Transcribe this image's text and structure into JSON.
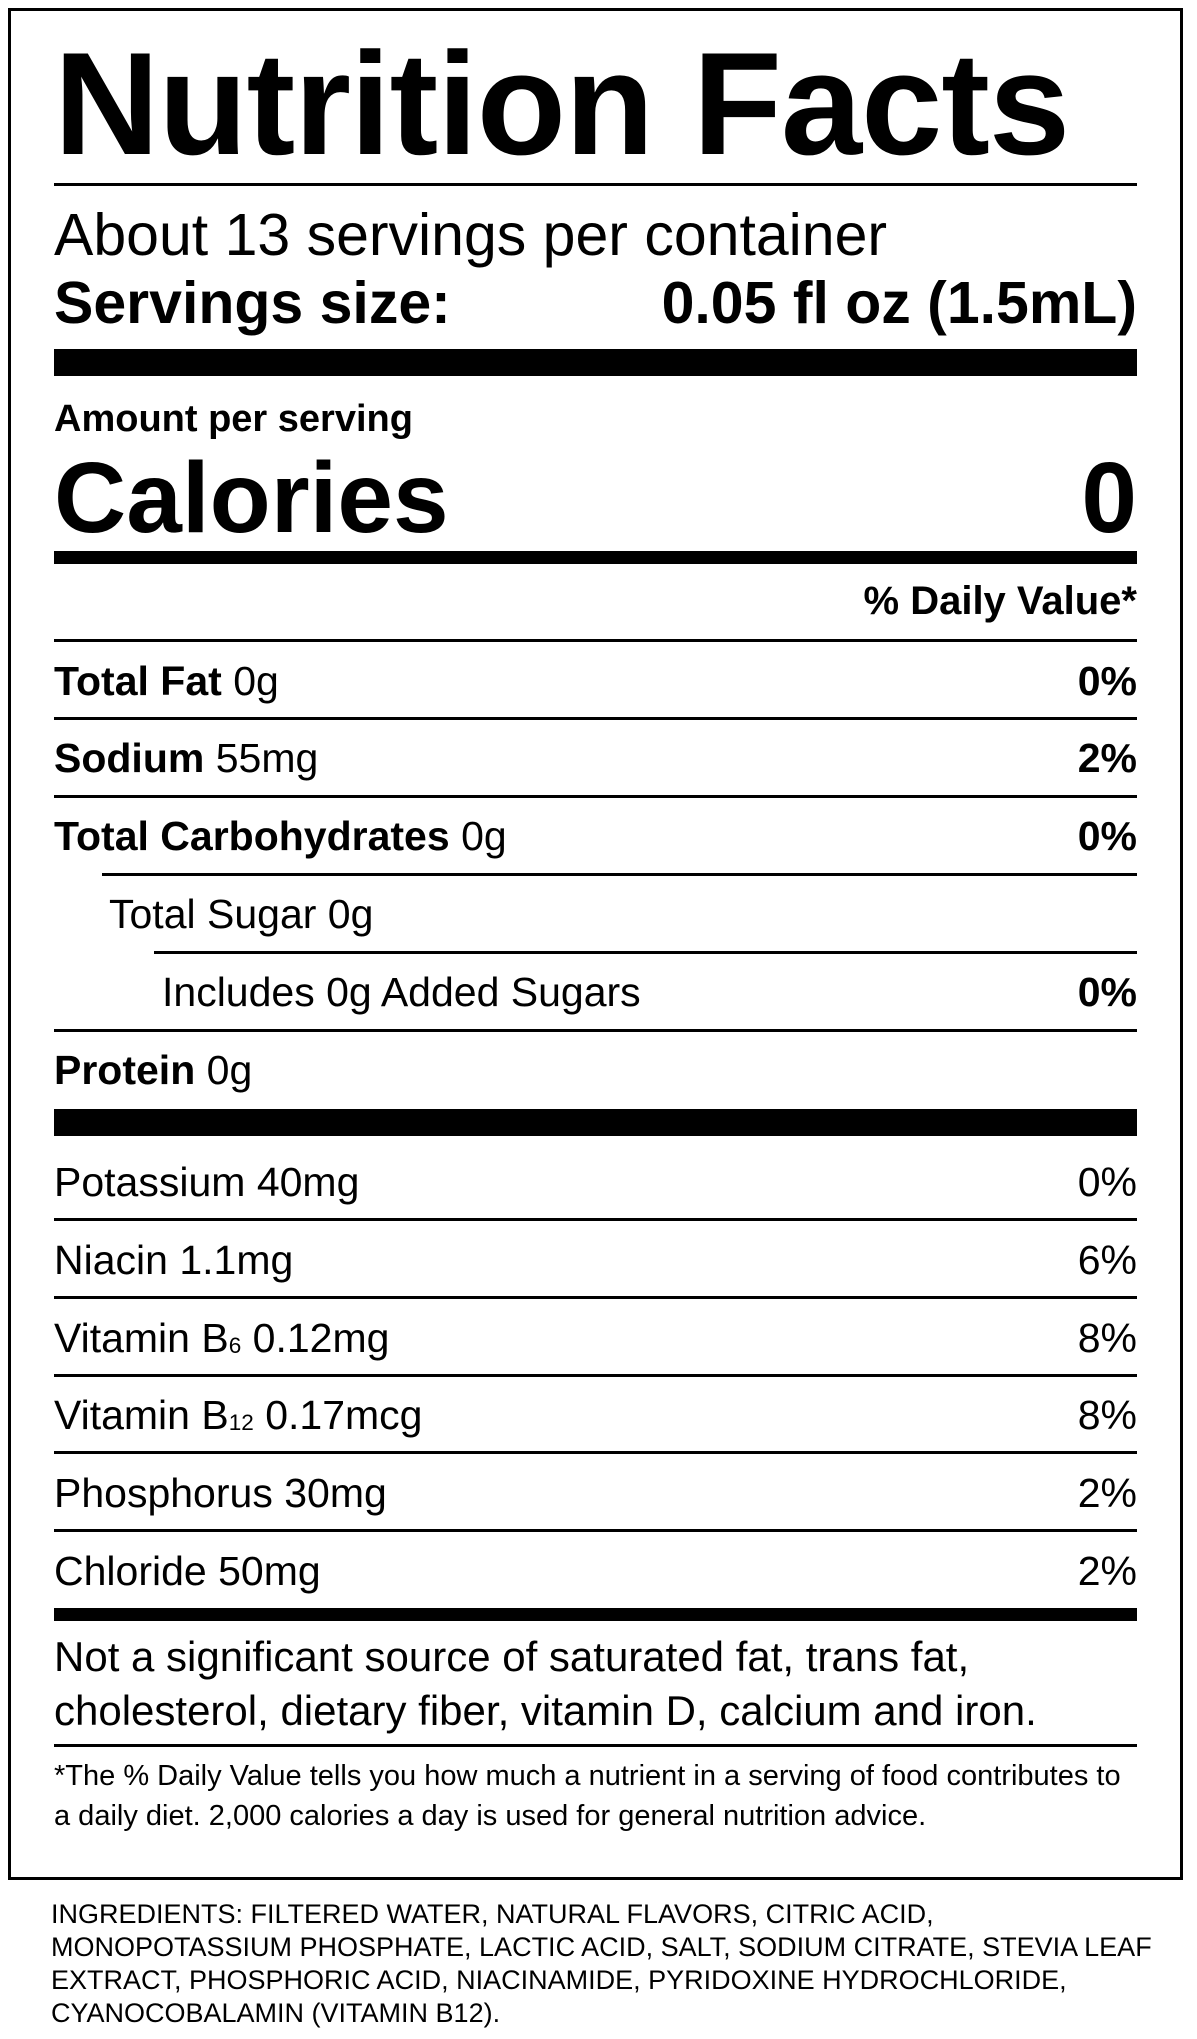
{
  "title": "Nutrition Facts",
  "servings_per_container": "About 13 servings per container",
  "serving_size": {
    "label": "Servings size:",
    "value": "0.05 fl oz (1.5mL)"
  },
  "amount_per_serving": "Amount per serving",
  "calories": {
    "label": "Calories",
    "value": "0"
  },
  "daily_value_header": "% Daily Value*",
  "nutrients": [
    {
      "name": "Total Fat",
      "amount": "0g",
      "dv": "0%"
    },
    {
      "name": "Sodium",
      "amount": "55mg",
      "dv": "2%"
    },
    {
      "name": "Total Carbohydrates",
      "amount": "0g",
      "dv": "0%"
    },
    {
      "name": "Total Sugar 0g",
      "amount": "",
      "dv": ""
    },
    {
      "name": "Includes 0g Added Sugars",
      "amount": "",
      "dv": "0%"
    },
    {
      "name": "Protein",
      "amount": "0g",
      "dv": ""
    }
  ],
  "vitamins": [
    {
      "name": "Potassium",
      "sub": "",
      "amount": "40mg",
      "dv": "0%"
    },
    {
      "name": "Niacin",
      "sub": "",
      "amount": "1.1mg",
      "dv": "6%"
    },
    {
      "name": "Vitamin B",
      "sub": "6",
      "amount": "0.12mg",
      "dv": "8%"
    },
    {
      "name": "Vitamin B",
      "sub": "12",
      "amount": "0.17mcg",
      "dv": "8%"
    },
    {
      "name": "Phosphorus",
      "sub": "",
      "amount": "30mg",
      "dv": "2%"
    },
    {
      "name": "Chloride",
      "sub": "",
      "amount": "50mg",
      "dv": "2%"
    }
  ],
  "not_significant": "Not a significant source of saturated fat, trans fat, cholesterol, dietary fiber, vitamin D, calcium and iron.",
  "footnote": "*The % Daily Value tells you how much a nutrient in a serving of food contributes to a daily diet. 2,000 calories a day is used for general nutrition advice.",
  "ingredients": "INGREDIENTS: FILTERED WATER, NATURAL FLAVORS, CITRIC ACID, MONOPOTASSIUM PHOSPHATE, LACTIC ACID, SALT, SODIUM CITRATE, STEVIA LEAF EXTRACT, PHOSPHORIC ACID, NIACINAMIDE, PYRIDOXINE HYDROCHLORIDE, CYANOCOBALAMIN (VITAMIN B12)."
}
